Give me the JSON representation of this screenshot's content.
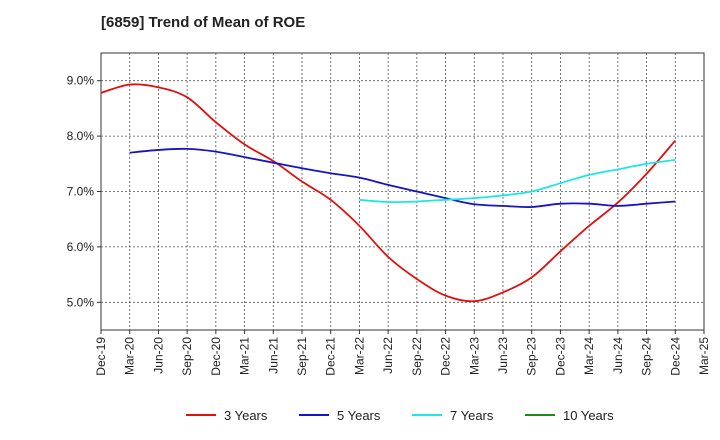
{
  "chart_data": {
    "type": "line",
    "title": "[6859]  Trend of Mean of ROE",
    "xlabel": "",
    "ylabel": "",
    "x": [
      "Dec-19",
      "Mar-20",
      "Jun-20",
      "Sep-20",
      "Dec-20",
      "Mar-21",
      "Jun-21",
      "Sep-21",
      "Dec-21",
      "Mar-22",
      "Jun-22",
      "Sep-22",
      "Dec-22",
      "Mar-23",
      "Jun-23",
      "Sep-23",
      "Dec-23",
      "Mar-24",
      "Jun-24",
      "Sep-24",
      "Dec-24",
      "Mar-25"
    ],
    "ylim": [
      4.5,
      9.5
    ],
    "yticks": [
      5.0,
      6.0,
      7.0,
      8.0,
      9.0
    ],
    "ytick_labels": [
      "5.0%",
      "6.0%",
      "7.0%",
      "8.0%",
      "9.0%"
    ],
    "grid": true,
    "legend_position": "bottom",
    "series": [
      {
        "name": "3 Years",
        "color": "#e01010",
        "values": [
          8.78,
          8.93,
          8.88,
          8.7,
          8.25,
          7.85,
          7.55,
          7.18,
          6.85,
          6.38,
          5.82,
          5.42,
          5.12,
          5.02,
          5.18,
          5.45,
          5.92,
          6.38,
          6.8,
          7.32,
          7.92,
          null
        ]
      },
      {
        "name": "5 Years",
        "color": "#1414c8",
        "values": [
          null,
          7.7,
          7.75,
          7.77,
          7.72,
          7.62,
          7.52,
          7.42,
          7.33,
          7.25,
          7.12,
          7.0,
          6.88,
          6.77,
          6.74,
          6.72,
          6.78,
          6.78,
          6.74,
          6.78,
          6.82,
          null
        ]
      },
      {
        "name": "7 Years",
        "color": "#1ee6e6",
        "values": [
          null,
          null,
          null,
          null,
          null,
          null,
          null,
          null,
          null,
          6.85,
          6.81,
          6.82,
          6.85,
          6.88,
          6.93,
          7.0,
          7.15,
          7.3,
          7.4,
          7.5,
          7.57,
          null
        ]
      },
      {
        "name": "10 Years",
        "color": "#1a8a1a",
        "values": [
          null,
          null,
          null,
          null,
          null,
          null,
          null,
          null,
          null,
          null,
          null,
          null,
          null,
          null,
          null,
          null,
          null,
          null,
          null,
          null,
          null,
          null
        ]
      }
    ]
  }
}
